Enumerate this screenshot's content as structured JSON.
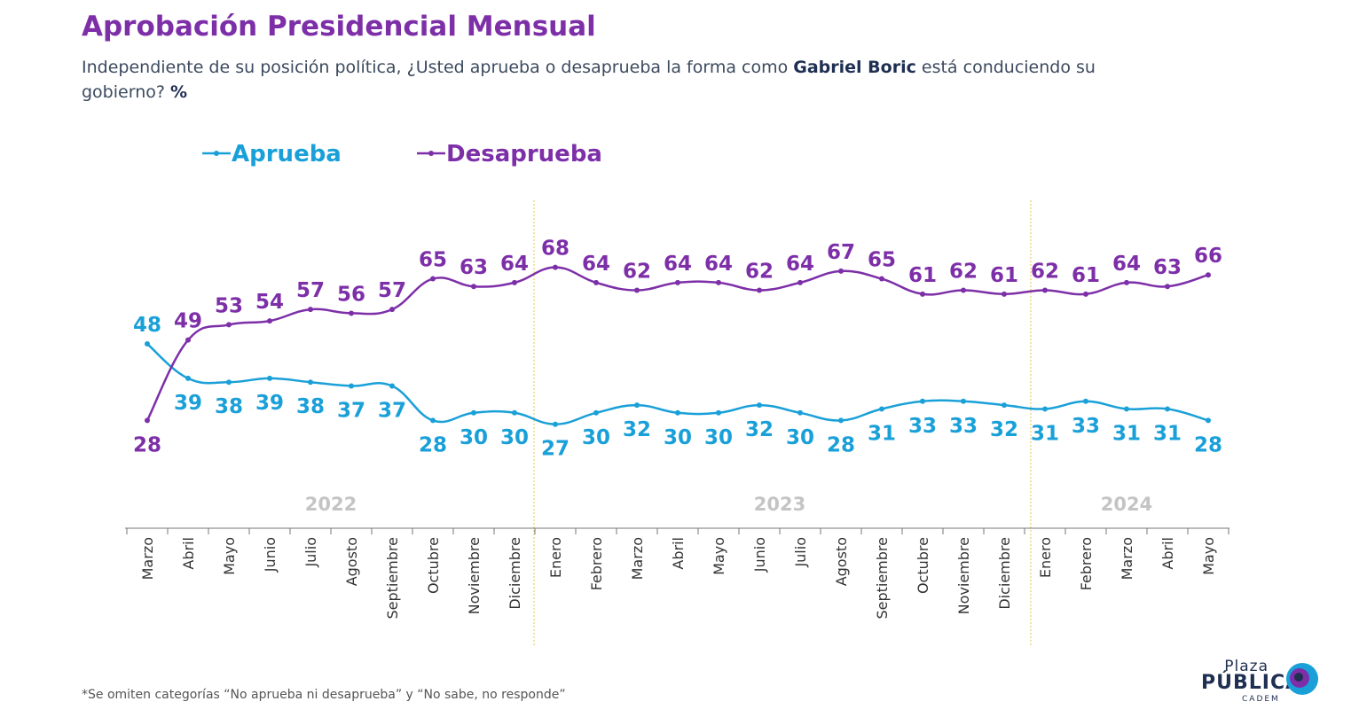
{
  "header": {
    "title": "Aprobación Presidencial Mensual",
    "subtitle_part1": "Independiente de su posición política, ¿Usted aprueba o desaprueba la forma como ",
    "subtitle_bold": "Gabriel Boric",
    "subtitle_part2": " está conduciendo su gobierno? ",
    "subtitle_pct": "%"
  },
  "footnote": "*Se omiten categorías “No aprueba ni desaprueba” y “No sabe, no responde”",
  "logo": {
    "plaza": "Plaza",
    "publica": "PÚBLICA",
    "cadem": "CADEM"
  },
  "chart_data": {
    "type": "line",
    "x": [
      "Marzo",
      "Abril",
      "Mayo",
      "Junio",
      "Julio",
      "Agosto",
      "Septiembre",
      "Octubre",
      "Noviembre",
      "Diciembre",
      "Enero",
      "Febrero",
      "Marzo",
      "Abril",
      "Mayo",
      "Junio",
      "Julio",
      "Agosto",
      "Septiembre",
      "Octubre",
      "Noviembre",
      "Diciembre",
      "Enero",
      "Febrero",
      "Marzo",
      "Abril",
      "Mayo"
    ],
    "years": [
      {
        "label": "2022",
        "start": 0,
        "end": 9
      },
      {
        "label": "2023",
        "start": 10,
        "end": 21
      },
      {
        "label": "2024",
        "start": 22,
        "end": 26
      }
    ],
    "series": [
      {
        "name": "Aprueba",
        "color": "#1aa0d8",
        "values": [
          48,
          39,
          38,
          39,
          38,
          37,
          37,
          28,
          30,
          30,
          27,
          30,
          32,
          30,
          30,
          32,
          30,
          28,
          31,
          33,
          33,
          32,
          31,
          33,
          31,
          31,
          28
        ]
      },
      {
        "name": "Desaprueba",
        "color": "#7d2fa8",
        "values": [
          28,
          49,
          53,
          54,
          57,
          56,
          57,
          65,
          63,
          64,
          68,
          64,
          62,
          64,
          64,
          62,
          64,
          67,
          65,
          61,
          62,
          61,
          62,
          61,
          64,
          63,
          66
        ]
      }
    ],
    "legend_position": "top-left",
    "grid": false,
    "year_separator_color": "#e8c547"
  }
}
